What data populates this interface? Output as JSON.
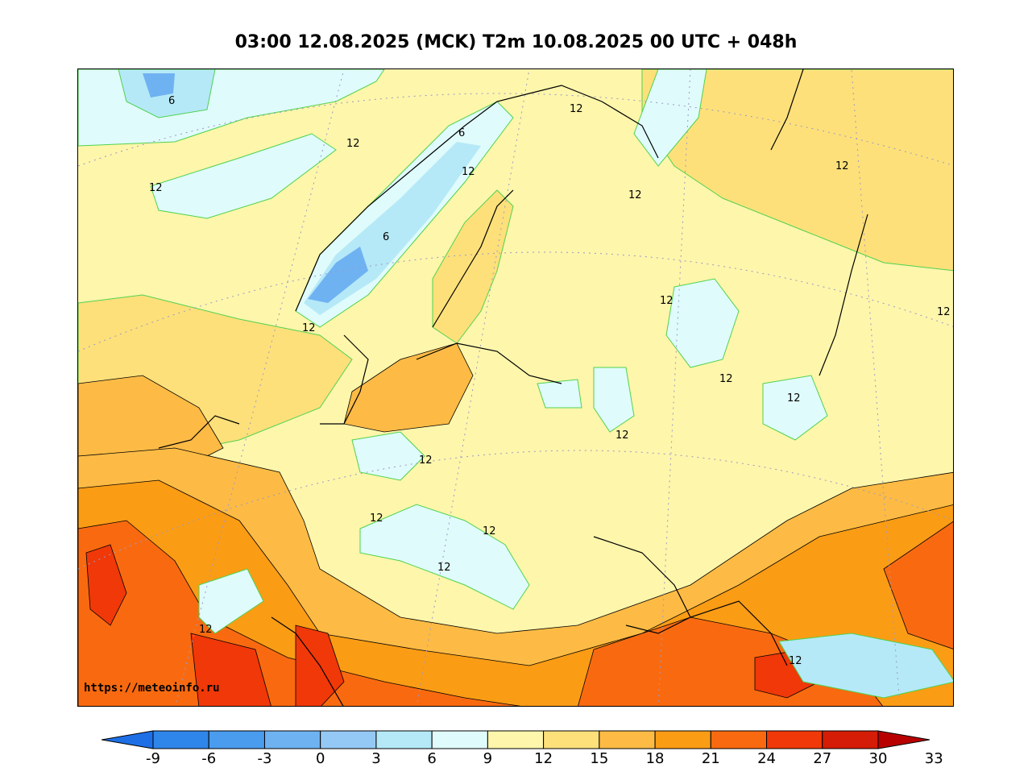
{
  "title": "03:00 12.08.2025 (MCK) T2m 10.08.2025 00 UTC + 048h",
  "watermark": "https://meteoinfo.ru",
  "contour_labels": [
    "6",
    "6",
    "6",
    "12",
    "12",
    "12",
    "12",
    "12",
    "12",
    "12",
    "12",
    "12",
    "12",
    "12",
    "12",
    "12",
    "12",
    "12",
    "12",
    "12",
    "12",
    "12",
    "12"
  ],
  "colorbar": {
    "ticks": [
      "-9",
      "-6",
      "-3",
      "0",
      "3",
      "6",
      "9",
      "12",
      "15",
      "18",
      "21",
      "24",
      "27",
      "30",
      "33"
    ],
    "colors": [
      "#1e6fe6",
      "#2f86ea",
      "#4a9cee",
      "#6fb2f2",
      "#95c9f5",
      "#b5e9f7",
      "#e0fbfb",
      "#fef6ab",
      "#fee07a",
      "#fdbb45",
      "#fb9c15",
      "#f96a10",
      "#f03808",
      "#d41c06",
      "#b80000"
    ]
  }
}
